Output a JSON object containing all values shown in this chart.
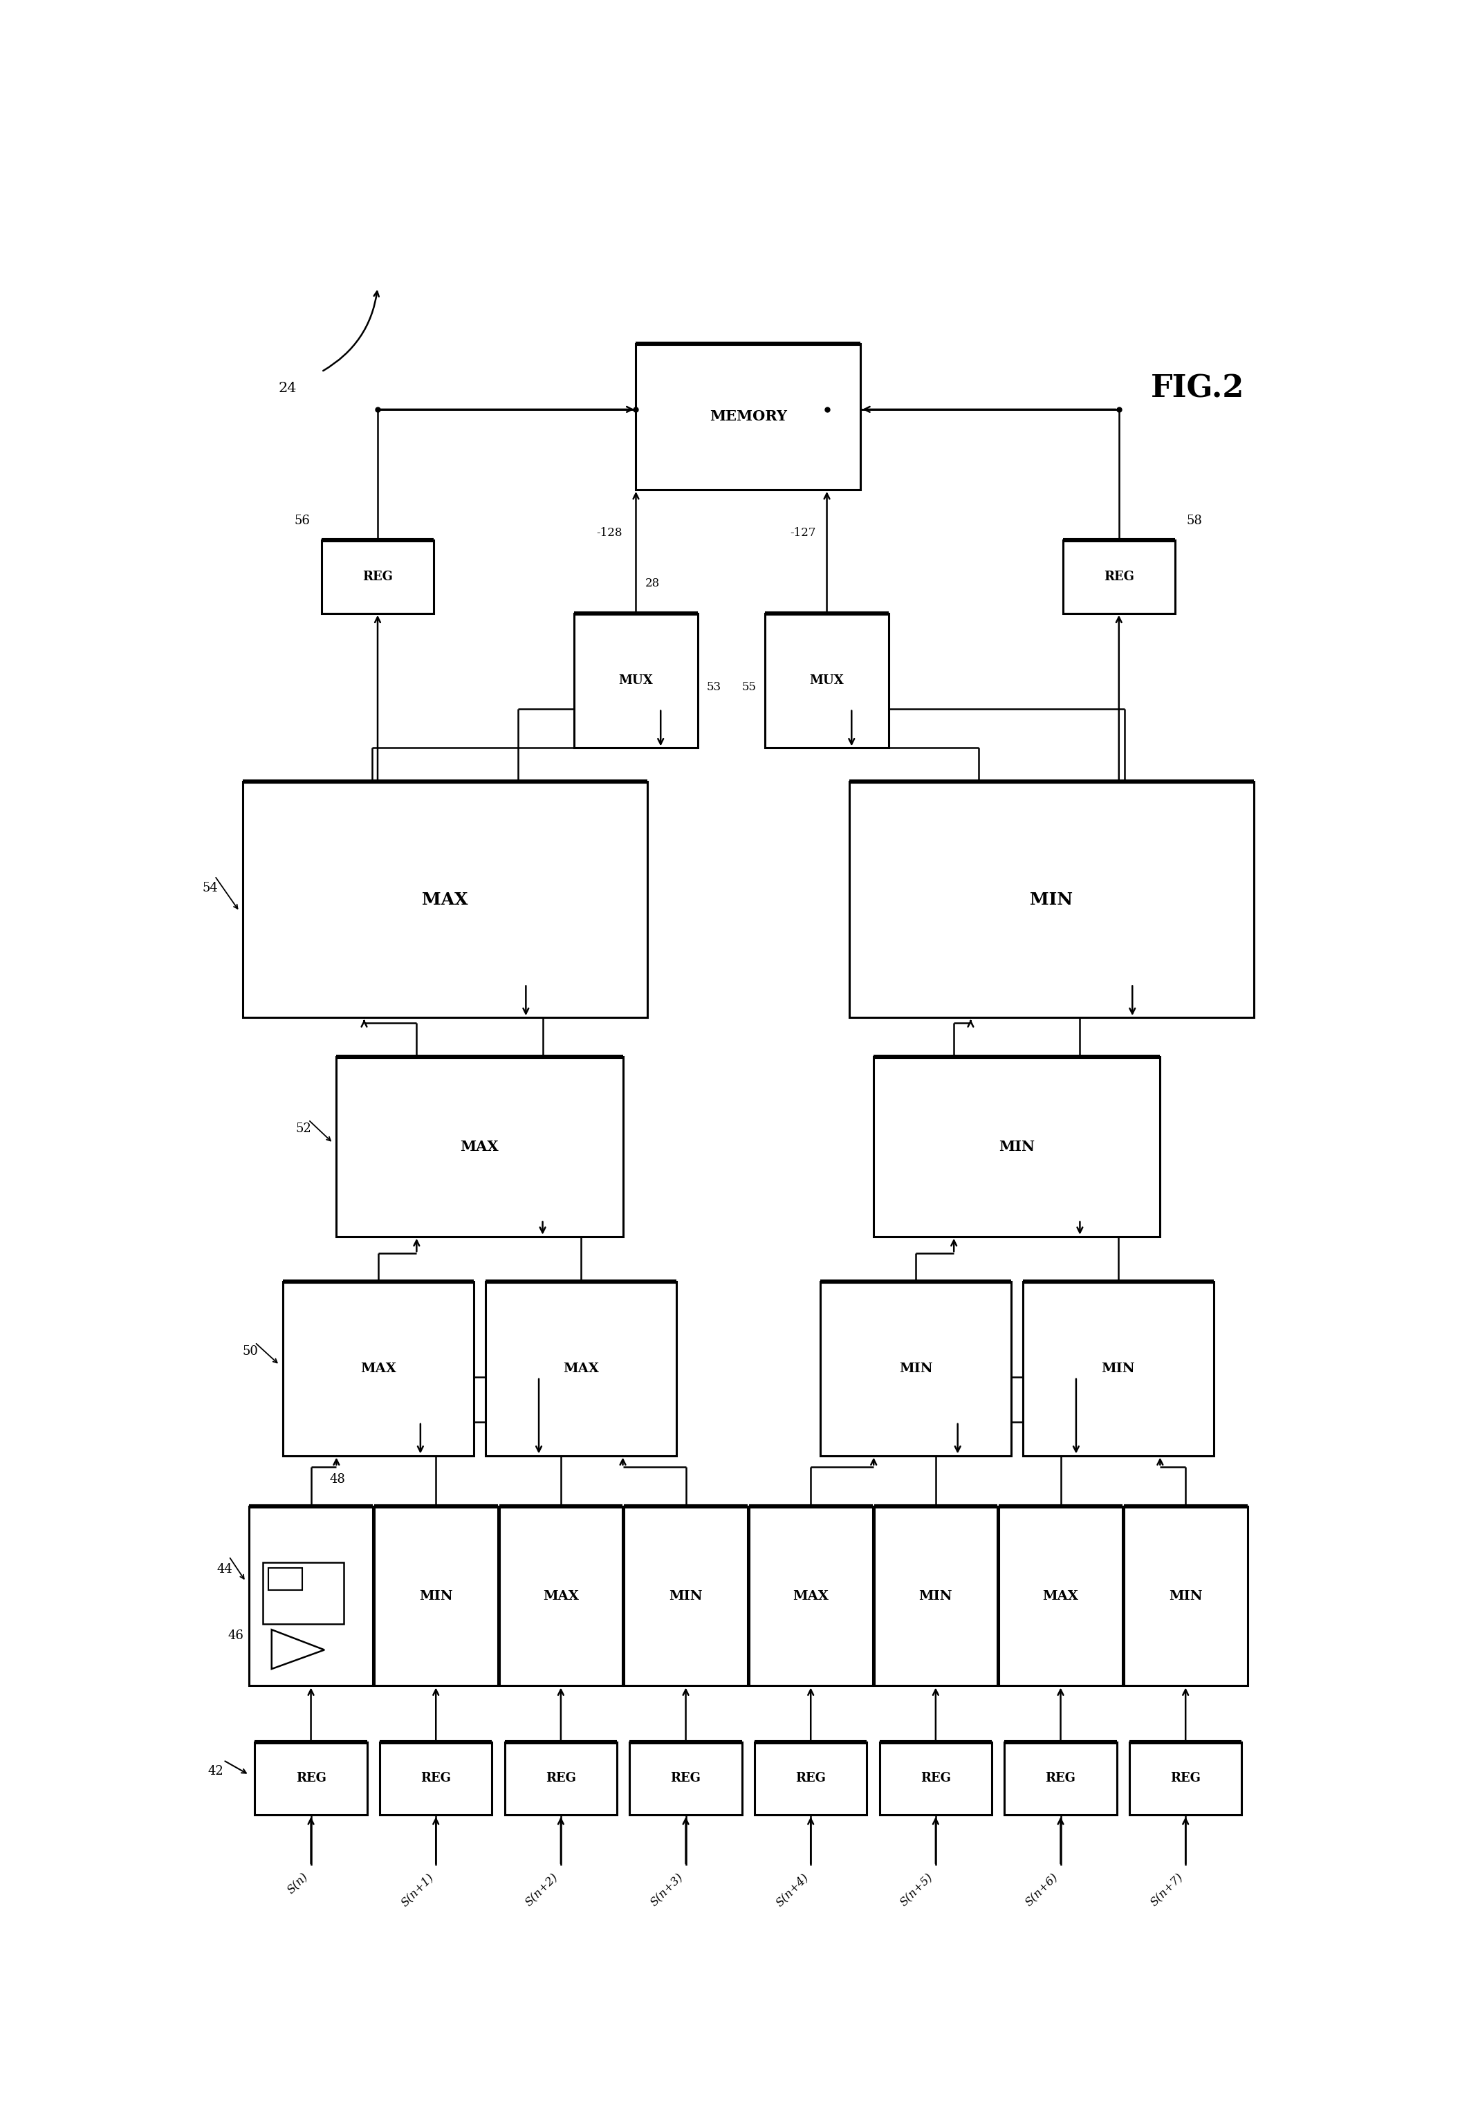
{
  "fig_width": 21.11,
  "fig_height": 30.58,
  "bg_color": "#ffffff",
  "title": "FIG.2",
  "signals": [
    "S(n)",
    "S(n+1)",
    "S(n+2)",
    "S(n+3)",
    "S(n+4)",
    "S(n+5)",
    "S(n+6)",
    "S(n+7)"
  ],
  "lw_thin": 1.8,
  "lw_thick": 4.0,
  "lw_border": 2.2,
  "lw_border_thick": 4.5,
  "fs_small": 13,
  "fs_med": 15,
  "fs_large": 18,
  "fs_title": 32,
  "fs_signal": 12
}
